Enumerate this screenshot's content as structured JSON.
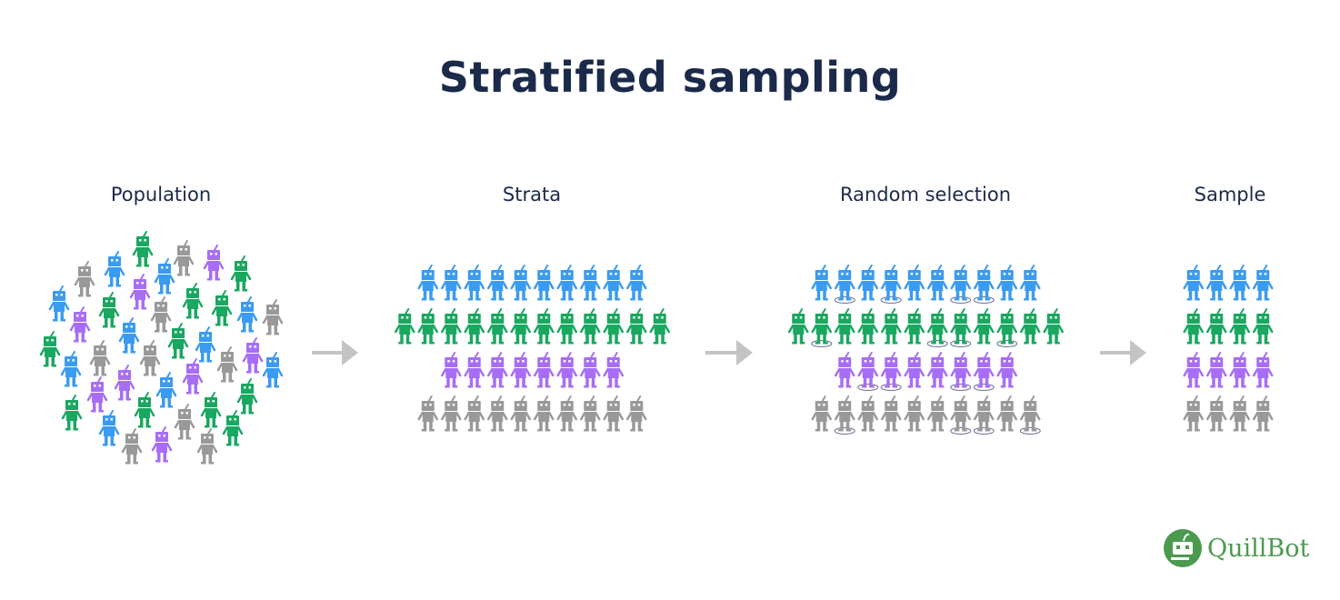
{
  "title": "Stratified sampling",
  "stages": [
    {
      "label": "Population"
    },
    {
      "label": "Strata"
    },
    {
      "label": "Random selection"
    },
    {
      "label": "Sample"
    }
  ],
  "colors": {
    "title": "#1b2a4a",
    "blue": "#3a9bf0",
    "green": "#1aa760",
    "purple": "#a76ef5",
    "gray": "#999999",
    "arrow": "#c4c4c4",
    "selection_ring": "#6b6f9a",
    "logo": "#4b9a4f"
  },
  "strata": [
    {
      "color": "blue",
      "count": 10,
      "selected": [
        1,
        3,
        6,
        7
      ]
    },
    {
      "color": "green",
      "count": 12,
      "selected": [
        1,
        6,
        7,
        9
      ]
    },
    {
      "color": "purple",
      "count": 8,
      "selected": [
        1,
        2,
        5,
        6
      ]
    },
    {
      "color": "gray",
      "count": 10,
      "selected": [
        1,
        6,
        7,
        9
      ]
    }
  ],
  "sample_per_stratum": 4,
  "logo": {
    "text": "QuillBot",
    "icon": "quillbot-robot-icon"
  }
}
